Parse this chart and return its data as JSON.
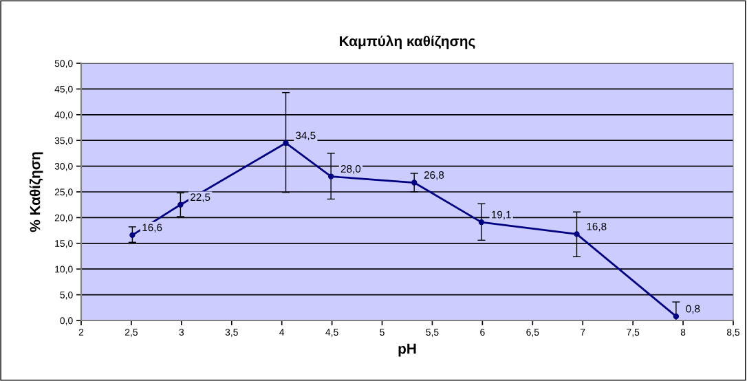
{
  "chart_data": {
    "type": "line",
    "title": "Καμπύλη καθίζησης",
    "xlabel": "pH",
    "ylabel": "% Καθίζηση",
    "x": [
      2.51,
      2.99,
      4.04,
      4.49,
      5.32,
      5.99,
      6.94,
      7.93
    ],
    "series": [
      {
        "color": "#000080",
        "values": [
          16.6,
          22.5,
          34.5,
          28.0,
          26.8,
          19.1,
          16.8,
          0.8
        ],
        "errors": [
          [
            15.2,
            18.2
          ],
          [
            20.2,
            24.8
          ],
          [
            24.9,
            44.3
          ],
          [
            23.6,
            32.5
          ],
          [
            25.0,
            28.6
          ],
          [
            15.6,
            22.7
          ],
          [
            12.4,
            21.1
          ],
          [
            0,
            3.6
          ]
        ],
        "value_labels": [
          "16,6",
          "22,5",
          "34,5",
          "28,0",
          "26,8",
          "19,1",
          "16,8",
          "0,8"
        ]
      }
    ],
    "xlim": [
      2,
      8.5
    ],
    "xticks": [
      2,
      {
        "value": 2.5,
        "label": "2,5"
      },
      3,
      {
        "value": 3.5,
        "label": "3,5"
      },
      4,
      {
        "value": 4.5,
        "label": "4,5"
      },
      5,
      {
        "value": 5.5,
        "label": "5,5"
      },
      6,
      {
        "value": 6.5,
        "label": "6,5"
      },
      7,
      {
        "value": 7.5,
        "label": "7,5"
      },
      8,
      {
        "value": 8.5,
        "label": "8,5"
      }
    ],
    "ylim": [
      0,
      50
    ],
    "yticks": [
      {
        "value": 0,
        "label": "0,0"
      },
      {
        "value": 5,
        "label": "5,0"
      },
      {
        "value": 10,
        "label": "10,0"
      },
      {
        "value": 15,
        "label": "15,0"
      },
      {
        "value": 20,
        "label": "20,0"
      },
      {
        "value": 25,
        "label": "25,0"
      },
      {
        "value": 30,
        "label": "30,0"
      },
      {
        "value": 35,
        "label": "35,0"
      },
      {
        "value": 40,
        "label": "40,0"
      },
      {
        "value": 45,
        "label": "45,0"
      },
      {
        "value": 50,
        "label": "50,0"
      }
    ],
    "grid": "y",
    "marker": "circle",
    "line_style": "solid"
  }
}
